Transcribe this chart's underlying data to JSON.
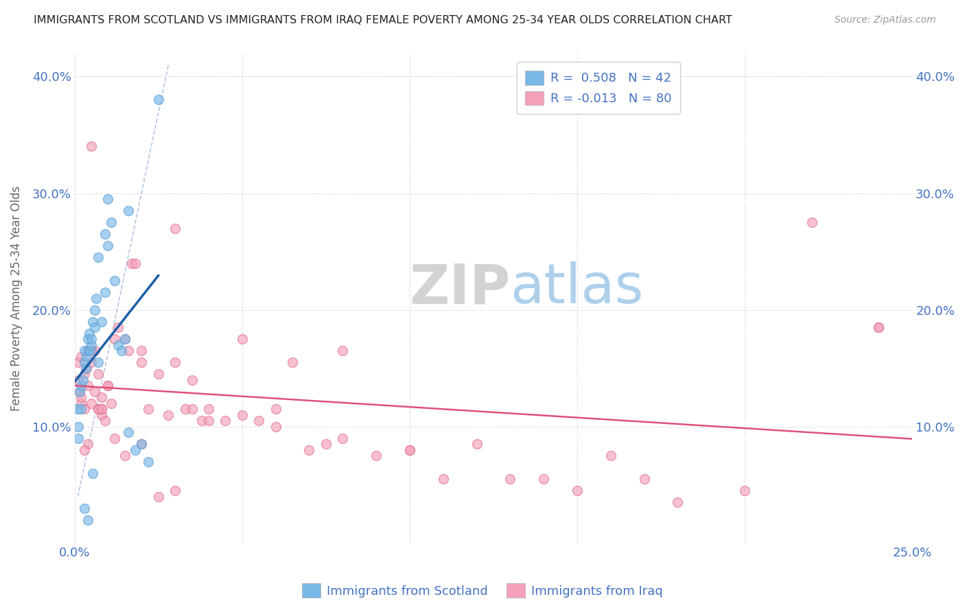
{
  "title": "IMMIGRANTS FROM SCOTLAND VS IMMIGRANTS FROM IRAQ FEMALE POVERTY AMONG 25-34 YEAR OLDS CORRELATION CHART",
  "source": "Source: ZipAtlas.com",
  "ylabel": "Female Poverty Among 25-34 Year Olds",
  "x_min": 0.0,
  "x_max": 0.25,
  "y_min": 0.0,
  "y_max": 0.42,
  "scotland_color": "#7ab8e8",
  "scotland_edge": "#5a9fd4",
  "iraq_color": "#f4a0b8",
  "iraq_edge": "#e07090",
  "scotland_R": 0.508,
  "scotland_N": 42,
  "iraq_R": -0.013,
  "iraq_N": 80,
  "legend_label_scotland": "Immigrants from Scotland",
  "legend_label_iraq": "Immigrants from Iraq",
  "background_color": "#ffffff",
  "grid_color": "#dddddd",
  "title_color": "#222222",
  "tick_label_color": "#4472c4",
  "trend_scotland_color": "#1a5fa8",
  "trend_iraq_color": "#e0507a",
  "diag_color": "#a0b8d8",
  "ylabel_color": "#666666",
  "watermark_zip_color": "#cccccc",
  "watermark_atlas_color": "#a0c8e8",
  "scotland_x": [
    0.0008,
    0.001,
    0.0012,
    0.0015,
    0.002,
    0.002,
    0.0025,
    0.003,
    0.003,
    0.0033,
    0.0035,
    0.004,
    0.004,
    0.0043,
    0.0045,
    0.005,
    0.005,
    0.0055,
    0.006,
    0.006,
    0.0065,
    0.007,
    0.008,
    0.009,
    0.009,
    0.01,
    0.011,
    0.012,
    0.013,
    0.014,
    0.015,
    0.016,
    0.018,
    0.02,
    0.022,
    0.025,
    0.016,
    0.01,
    0.007,
    0.0055,
    0.004,
    0.003
  ],
  "scotland_y": [
    0.115,
    0.1,
    0.09,
    0.13,
    0.135,
    0.115,
    0.14,
    0.155,
    0.165,
    0.15,
    0.16,
    0.165,
    0.175,
    0.18,
    0.165,
    0.17,
    0.175,
    0.19,
    0.185,
    0.2,
    0.21,
    0.155,
    0.19,
    0.215,
    0.265,
    0.255,
    0.275,
    0.225,
    0.17,
    0.165,
    0.175,
    0.095,
    0.08,
    0.085,
    0.07,
    0.38,
    0.285,
    0.295,
    0.245,
    0.06,
    0.02,
    0.03
  ],
  "iraq_x": [
    0.001,
    0.001,
    0.0015,
    0.002,
    0.002,
    0.003,
    0.003,
    0.0035,
    0.004,
    0.004,
    0.005,
    0.005,
    0.006,
    0.006,
    0.007,
    0.007,
    0.008,
    0.008,
    0.009,
    0.01,
    0.011,
    0.012,
    0.013,
    0.015,
    0.016,
    0.017,
    0.018,
    0.02,
    0.022,
    0.025,
    0.028,
    0.03,
    0.033,
    0.035,
    0.038,
    0.04,
    0.045,
    0.05,
    0.055,
    0.06,
    0.065,
    0.07,
    0.075,
    0.08,
    0.09,
    0.1,
    0.11,
    0.12,
    0.13,
    0.14,
    0.15,
    0.16,
    0.17,
    0.18,
    0.2,
    0.22,
    0.24,
    0.005,
    0.008,
    0.012,
    0.015,
    0.02,
    0.025,
    0.03,
    0.035,
    0.04,
    0.06,
    0.08,
    0.1,
    0.05,
    0.03,
    0.02,
    0.01,
    0.007,
    0.004,
    0.003,
    0.002,
    0.005,
    0.008,
    0.24
  ],
  "iraq_y": [
    0.155,
    0.14,
    0.13,
    0.12,
    0.16,
    0.115,
    0.145,
    0.15,
    0.135,
    0.165,
    0.12,
    0.155,
    0.13,
    0.165,
    0.115,
    0.145,
    0.11,
    0.125,
    0.105,
    0.135,
    0.12,
    0.175,
    0.185,
    0.175,
    0.165,
    0.24,
    0.24,
    0.155,
    0.115,
    0.145,
    0.11,
    0.155,
    0.115,
    0.14,
    0.105,
    0.115,
    0.105,
    0.11,
    0.105,
    0.115,
    0.155,
    0.08,
    0.085,
    0.09,
    0.075,
    0.08,
    0.055,
    0.085,
    0.055,
    0.055,
    0.045,
    0.075,
    0.055,
    0.035,
    0.045,
    0.275,
    0.185,
    0.34,
    0.115,
    0.09,
    0.075,
    0.085,
    0.04,
    0.045,
    0.115,
    0.105,
    0.1,
    0.165,
    0.08,
    0.175,
    0.27,
    0.165,
    0.135,
    0.115,
    0.085,
    0.08,
    0.125,
    0.165,
    0.115,
    0.185
  ]
}
